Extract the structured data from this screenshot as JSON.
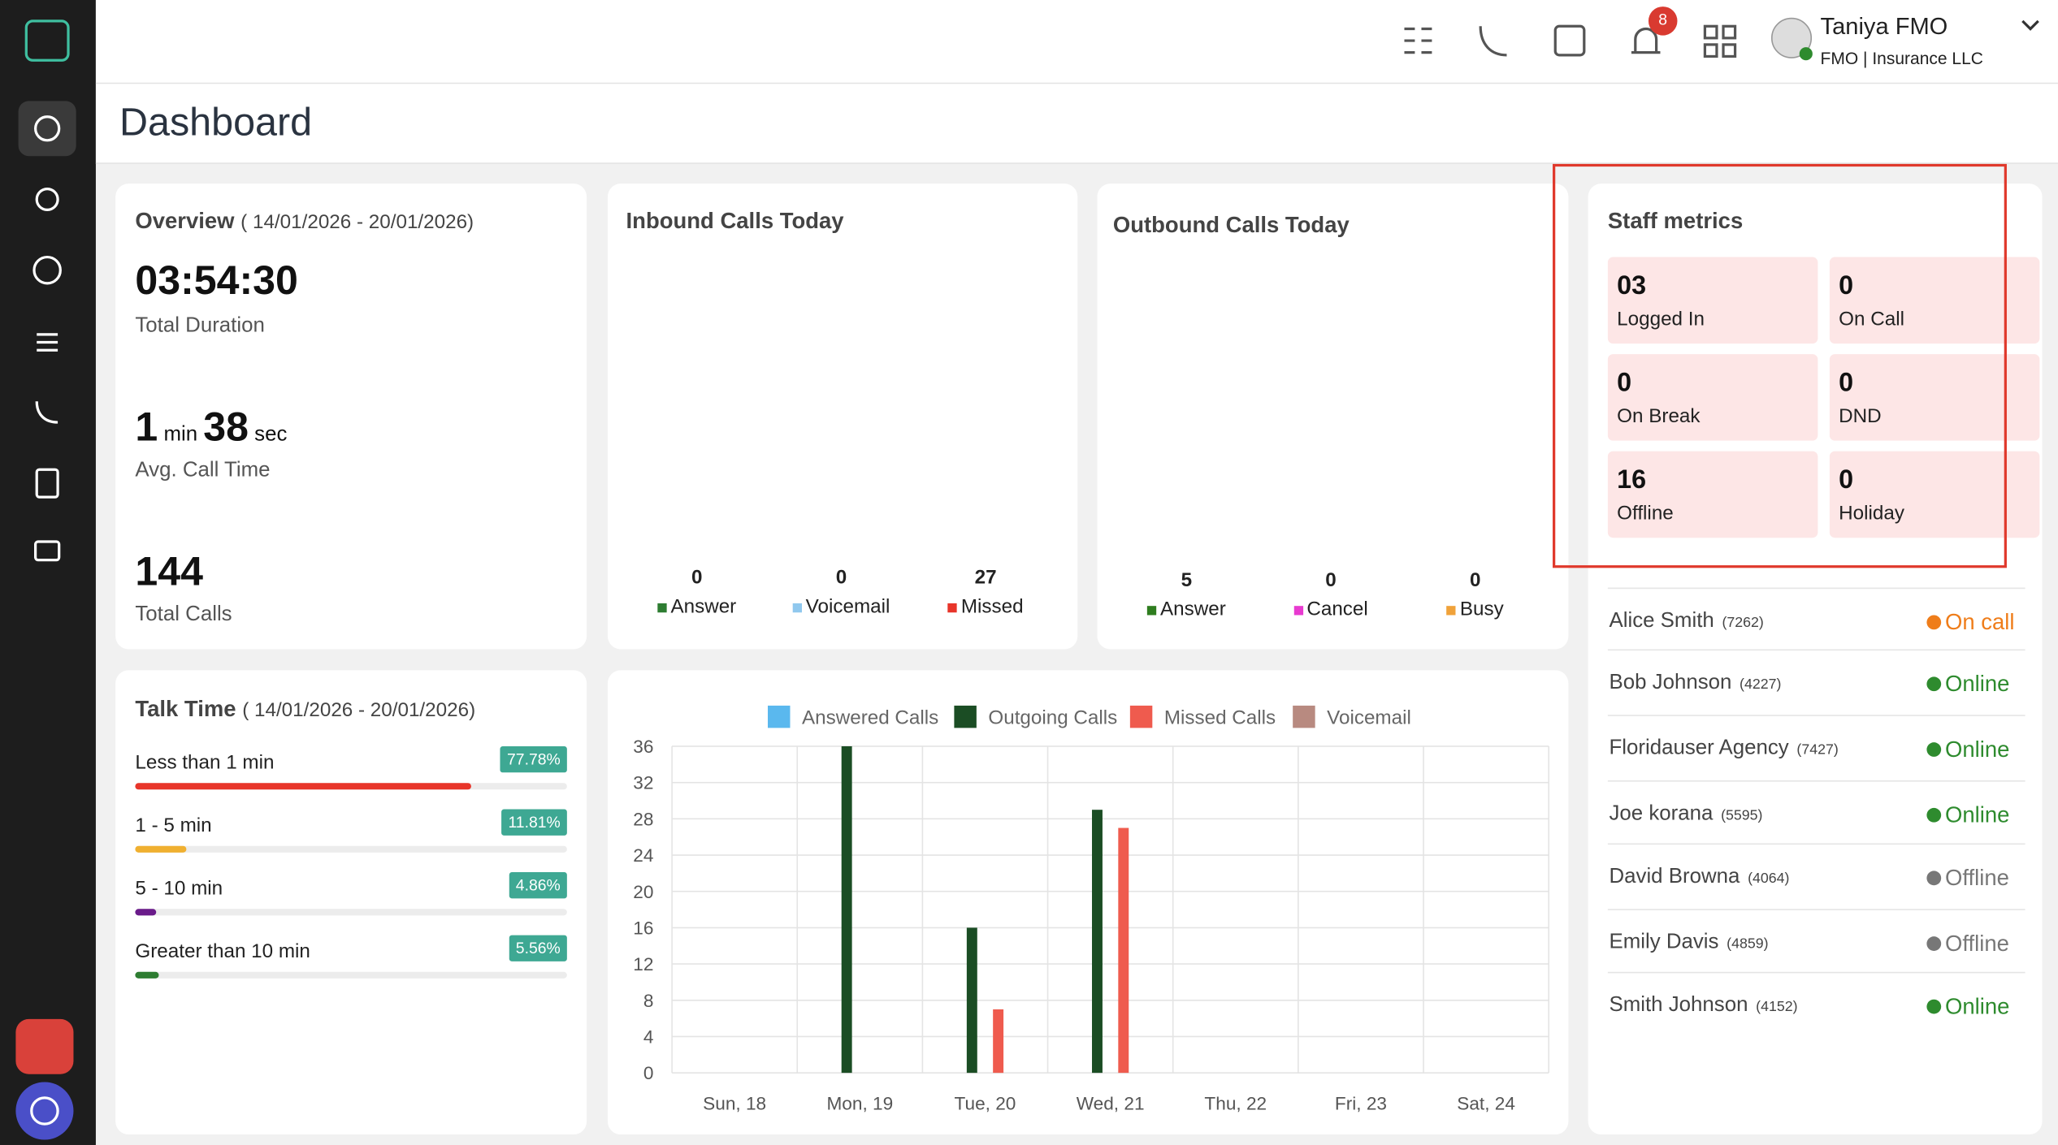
{
  "header": {
    "user_name": "Taniya FMO",
    "user_org": "FMO | Insurance LLC",
    "notifications": "8"
  },
  "page_title": "Dashboard",
  "overview": {
    "title": "Overview",
    "range": "( 14/01/2026 - 20/01/2026)",
    "duration": "03:54:30",
    "duration_label": "Total Duration",
    "avg_min": "1",
    "min_unit": "min",
    "avg_sec": "38",
    "sec_unit": "sec",
    "avg_label": "Avg. Call Time",
    "total_calls": "144",
    "total_label": "Total Calls"
  },
  "inbound": {
    "title": "Inbound Calls Today",
    "segments": [
      {
        "name": "Answer",
        "value": 0,
        "color": "#2e7d32"
      },
      {
        "name": "Voicemail",
        "value": 0,
        "color": "#90c8ee"
      },
      {
        "name": "Missed",
        "value": 27,
        "color": "#e8352a"
      }
    ]
  },
  "outbound": {
    "title": "Outbound Calls Today",
    "segments": [
      {
        "name": "Answer",
        "value": 5,
        "color": "#2f7d1f"
      },
      {
        "name": "Cancel",
        "value": 0,
        "color": "#e83ad0"
      },
      {
        "name": "Busy",
        "value": 0,
        "color": "#f0a23a"
      }
    ]
  },
  "staff_metrics": {
    "title": "Staff metrics",
    "tiles": [
      {
        "value": "03",
        "label": "Logged In"
      },
      {
        "value": "0",
        "label": "On Call"
      },
      {
        "value": "0",
        "label": "On Break"
      },
      {
        "value": "0",
        "label": "DND"
      },
      {
        "value": "16",
        "label": "Offline"
      },
      {
        "value": "0",
        "label": "Holiday"
      }
    ]
  },
  "staff_list": [
    {
      "name": "Alice Smith",
      "id": "(7262)",
      "status": "On call",
      "color": "#ef7d1a"
    },
    {
      "name": "Bob Johnson",
      "id": "(4227)",
      "status": "Online",
      "color": "#2e8b2e"
    },
    {
      "name": "Floridauser Agency",
      "id": "(7427)",
      "status": "Online",
      "color": "#2e8b2e"
    },
    {
      "name": "Joe korana",
      "id": "(5595)",
      "status": "Online",
      "color": "#2e8b2e"
    },
    {
      "name": "David Browna",
      "id": "(4064)",
      "status": "Offline",
      "color": "#777777"
    },
    {
      "name": "Emily Davis",
      "id": "(4859)",
      "status": "Offline",
      "color": "#777777"
    },
    {
      "name": "Smith Johnson",
      "id": "(4152)",
      "status": "Online",
      "color": "#2e8b2e"
    }
  ],
  "talk_time": {
    "title": "Talk Time",
    "range": "( 14/01/2026 - 20/01/2026)",
    "rows": [
      {
        "label": "Less than 1 min",
        "percent": {
          "value": 77.78,
          "label": "77.78%"
        },
        "color": "#e8352a"
      },
      {
        "label": "1 - 5 min",
        "percent": {
          "value": 11.81,
          "label": "11.81%"
        },
        "color": "#f0b030"
      },
      {
        "label": "5 - 10 min",
        "percent": {
          "value": 4.86,
          "label": "4.86%"
        },
        "color": "#6a1b8a"
      },
      {
        "label": "Greater than 10 min",
        "percent": {
          "value": 5.56,
          "label": "5.56%"
        },
        "color": "#2e7d32"
      }
    ]
  },
  "chart_data": {
    "type": "bar",
    "categories": [
      "Sun, 18",
      "Mon, 19",
      "Tue, 20",
      "Wed, 21",
      "Thu, 22",
      "Fri, 23",
      "Sat, 24"
    ],
    "series": [
      {
        "name": "Answered Calls",
        "color": "#5ab8ee",
        "values": [
          0,
          0,
          0,
          0,
          0,
          0,
          0
        ]
      },
      {
        "name": "Outgoing Calls",
        "color": "#1b4d24",
        "values": [
          0,
          36,
          16,
          29,
          0,
          0,
          0
        ]
      },
      {
        "name": "Missed Calls",
        "color": "#ef5b4e",
        "values": [
          0,
          0,
          7,
          27,
          0,
          0,
          0
        ]
      },
      {
        "name": "Voicemail",
        "color": "#b88a80",
        "values": [
          0,
          0,
          0,
          0,
          0,
          0,
          0
        ]
      }
    ],
    "ylim": [
      0,
      36
    ],
    "yticks": [
      0,
      4,
      8,
      12,
      16,
      20,
      24,
      28,
      32,
      36
    ],
    "grid": true
  }
}
